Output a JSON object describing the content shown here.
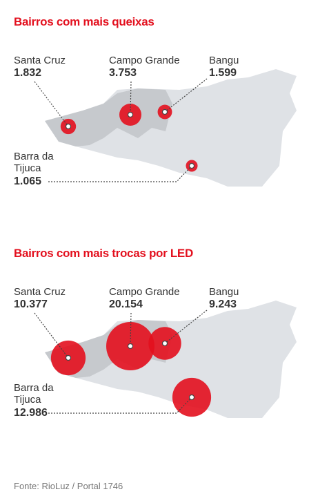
{
  "maps": [
    {
      "title": "Bairros com mais queixas",
      "points": [
        {
          "name": "Santa Cruz",
          "value": 1832,
          "value_label": "1.832"
        },
        {
          "name": "Campo Grande",
          "value": 3753,
          "value_label": "3.753"
        },
        {
          "name": "Bangu",
          "value": 1599,
          "value_label": "1.599"
        },
        {
          "name": "Barra da Tijuca",
          "value": 1065,
          "value_label": "1.065"
        }
      ]
    },
    {
      "title": "Bairros com mais trocas por LED",
      "points": [
        {
          "name": "Santa Cruz",
          "value": 10377,
          "value_label": "10.377"
        },
        {
          "name": "Campo Grande",
          "value": 20154,
          "value_label": "20.154"
        },
        {
          "name": "Bangu",
          "value": 9243,
          "value_label": "9.243"
        },
        {
          "name": "Barra da Tijuca",
          "value": 12986,
          "value_label": "12.986"
        }
      ]
    }
  ],
  "source": "Fonte: RioLuz / Portal 1746"
}
